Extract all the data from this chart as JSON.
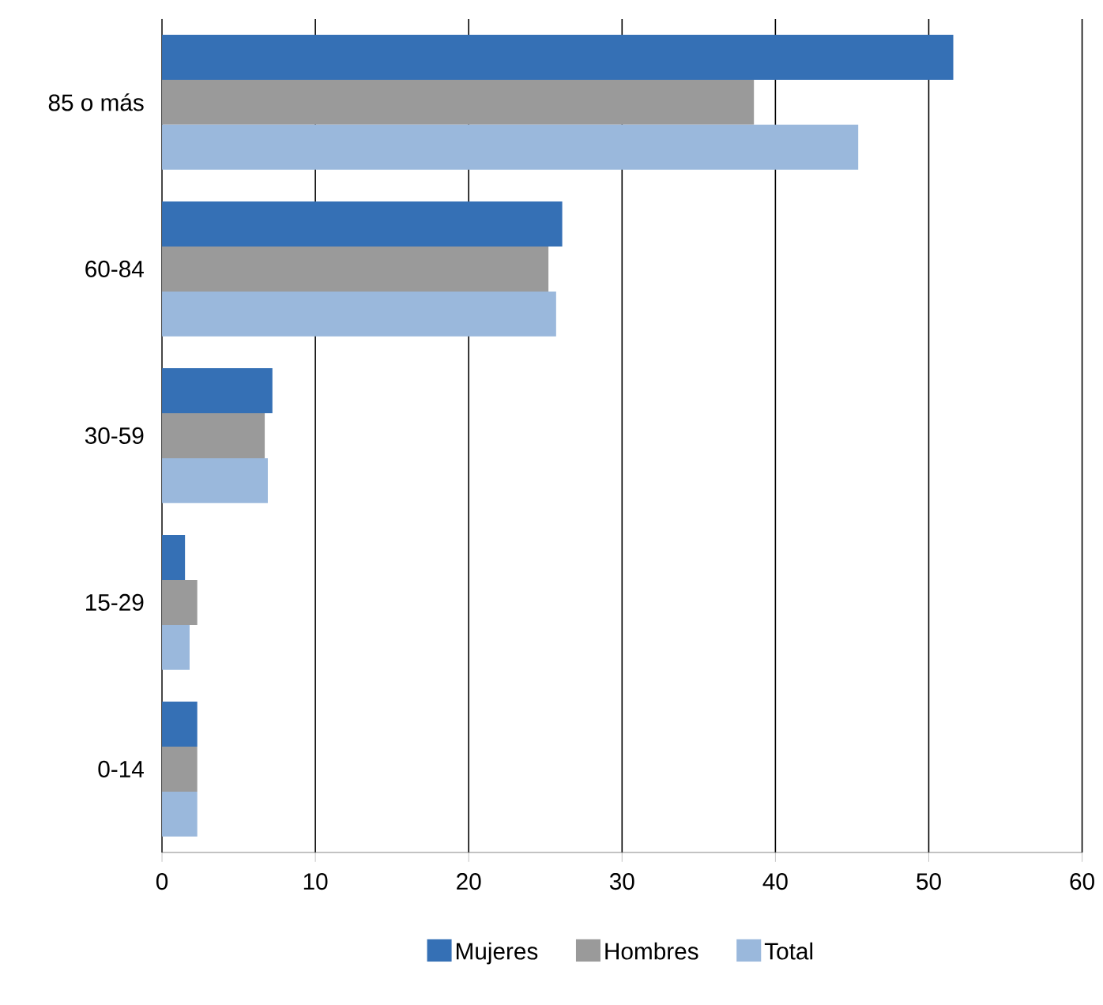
{
  "chart_data": {
    "type": "bar",
    "orientation": "horizontal",
    "categories": [
      "85 o más",
      "60-84",
      "30-59",
      "15-29",
      "0-14"
    ],
    "series": [
      {
        "name": "Mujeres",
        "color": "#3570b5",
        "values": [
          51.6,
          26.1,
          7.2,
          1.5,
          2.3
        ]
      },
      {
        "name": "Hombres",
        "color": "#9a9a9a",
        "values": [
          38.6,
          25.2,
          6.7,
          2.3,
          2.3
        ]
      },
      {
        "name": "Total",
        "color": "#9ab8dc",
        "values": [
          45.4,
          25.7,
          6.9,
          1.8,
          2.3
        ]
      }
    ],
    "xlim": [
      0,
      60
    ],
    "xticks": [
      0,
      10,
      20,
      30,
      40,
      50,
      60
    ],
    "grid": "x",
    "legend": "bottom"
  }
}
